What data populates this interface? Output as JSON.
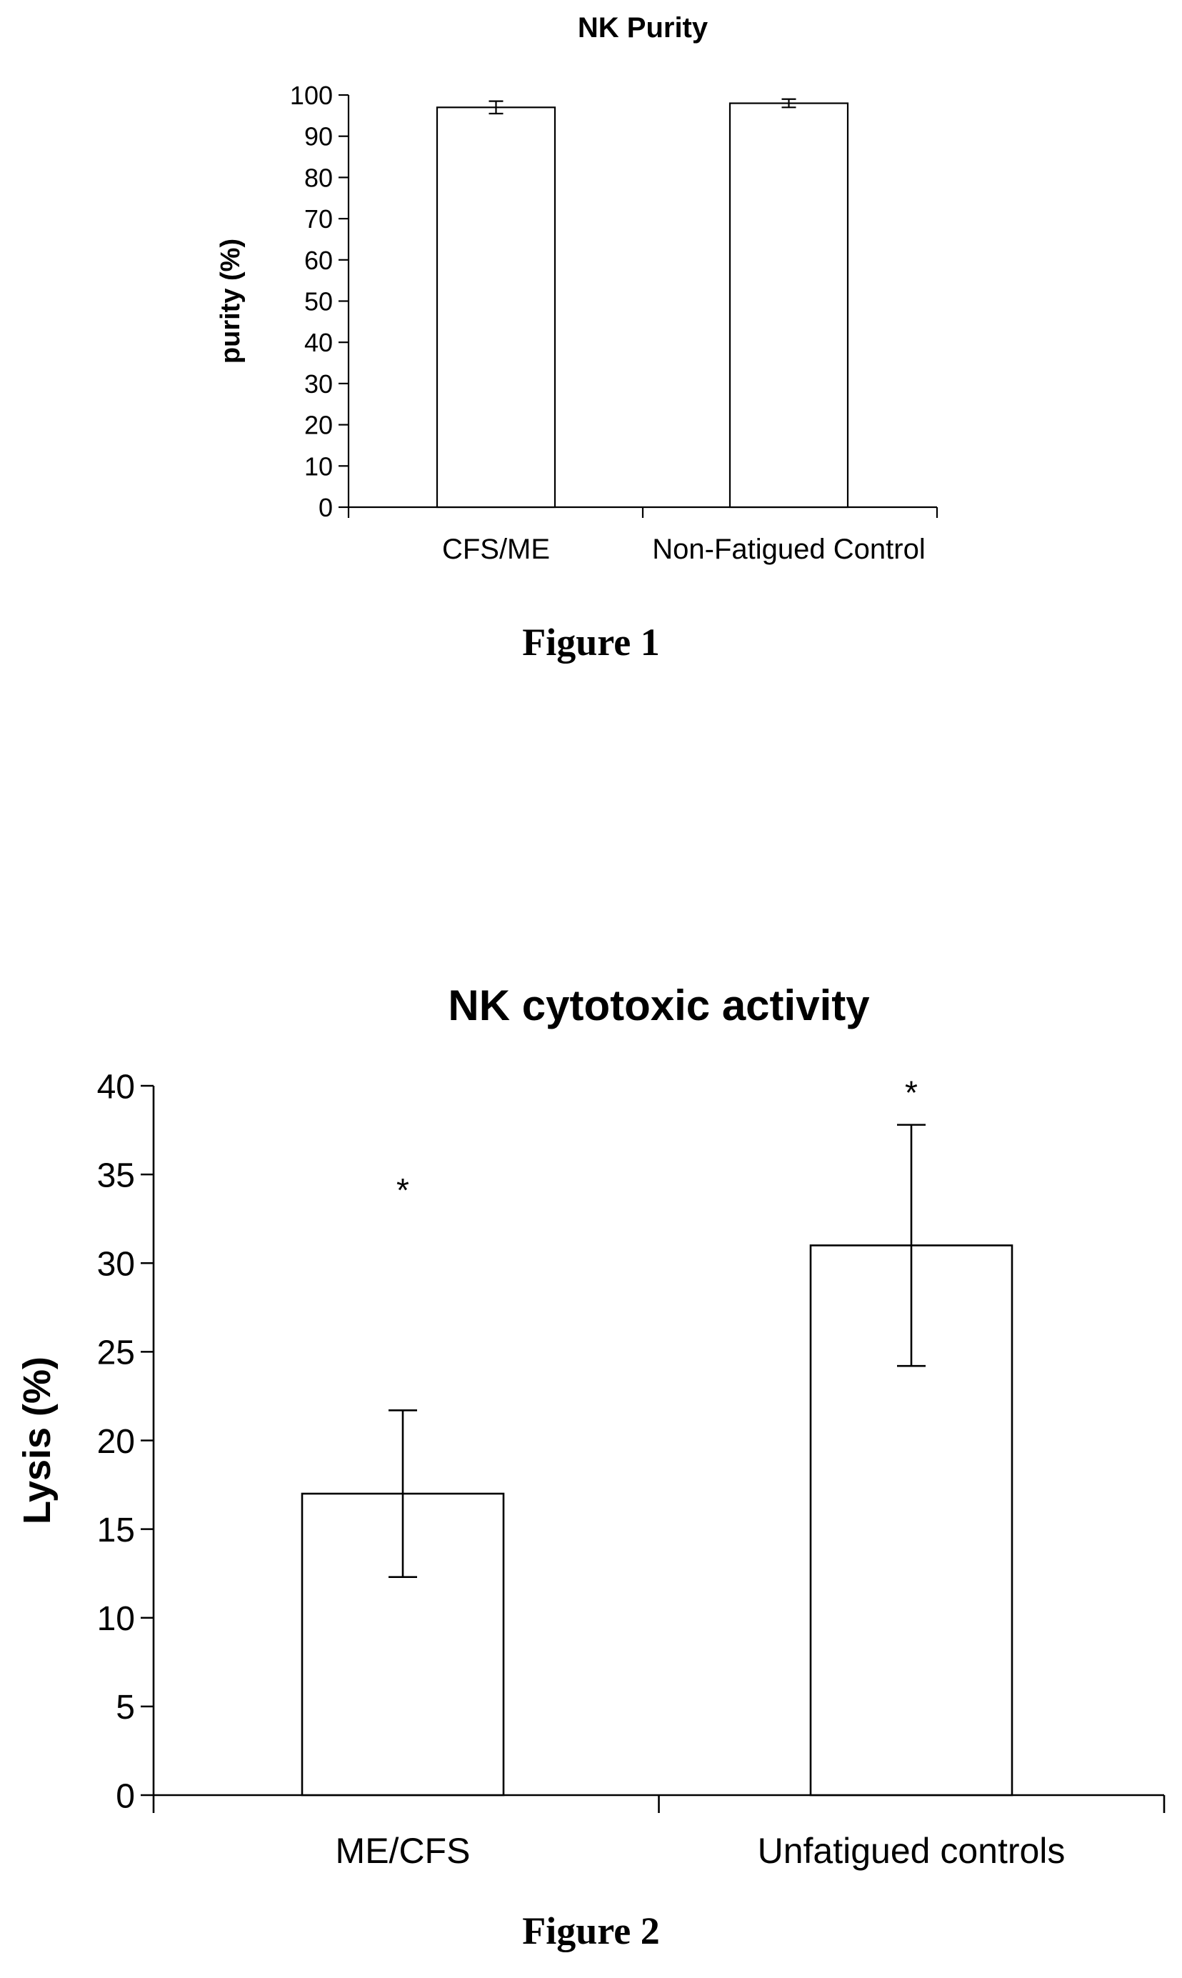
{
  "figures": [
    {
      "caption": "Figure 1",
      "chart_data": {
        "type": "bar",
        "title": "NK Purity",
        "xlabel": "",
        "ylabel": "purity (%)",
        "categories": [
          "CFS/ME",
          "Non-Fatigued Control"
        ],
        "values": [
          97,
          98
        ],
        "errors": [
          1.5,
          1
        ],
        "ylim": [
          0,
          100
        ],
        "yticks": [
          0,
          10,
          20,
          30,
          40,
          50,
          60,
          70,
          80,
          90,
          100
        ],
        "annotations": [],
        "grid": false,
        "legend": "none",
        "bar_fill": "#ffffff",
        "line_color": "#000000"
      }
    },
    {
      "caption": "Figure 2",
      "chart_data": {
        "type": "bar",
        "title": "NK cytotoxic activity",
        "xlabel": "",
        "ylabel": "Lysis (%)",
        "categories": [
          "ME/CFS",
          "Unfatigued controls"
        ],
        "values": [
          17,
          31
        ],
        "errors": [
          4.7,
          6.8
        ],
        "ylim": [
          0,
          40
        ],
        "yticks": [
          0,
          5,
          10,
          15,
          20,
          25,
          30,
          35,
          40
        ],
        "annotations": [
          {
            "text": "*",
            "x": "ME/CFS",
            "y": 34.5
          },
          {
            "text": "*",
            "x": "Unfatigued controls",
            "y": 40
          }
        ],
        "grid": false,
        "legend": "none",
        "bar_fill": "#ffffff",
        "line_color": "#000000"
      }
    }
  ]
}
